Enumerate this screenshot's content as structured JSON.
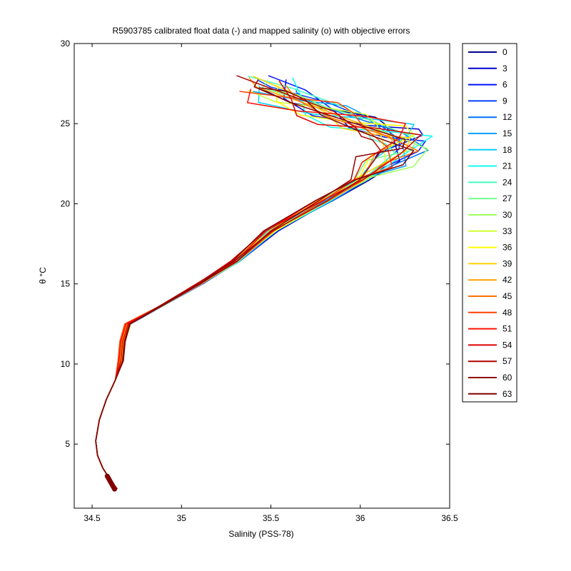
{
  "chart_data": {
    "type": "line",
    "title": "R5903785 calibrated float data (-) and mapped salinity (o) with objective errors",
    "xlabel": "Salinity (PSS-78)",
    "ylabel": "θ °C",
    "xlim": [
      34.4,
      36.5
    ],
    "ylim": [
      1,
      30
    ],
    "xticks": [
      34.5,
      35,
      35.5,
      36,
      36.5
    ],
    "yticks": [
      5,
      10,
      15,
      20,
      25,
      30
    ],
    "grid": false,
    "legend_position": "outside-right",
    "legend": [
      "0",
      "3",
      "6",
      "9",
      "12",
      "15",
      "18",
      "21",
      "24",
      "27",
      "30",
      "33",
      "36",
      "39",
      "42",
      "45",
      "48",
      "51",
      "54",
      "57",
      "60",
      "63"
    ],
    "colors": [
      "#00008f",
      "#0000d0",
      "#0010ff",
      "#0040ff",
      "#0070ff",
      "#00a0ff",
      "#00d0ff",
      "#10ffef",
      "#40ffbf",
      "#70ff8f",
      "#a0ff60",
      "#d0ff30",
      "#ffff00",
      "#ffcf00",
      "#ff9f00",
      "#ff7000",
      "#ff4000",
      "#ff1000",
      "#df0000",
      "#b00000",
      "#900000",
      "#800000"
    ],
    "profile_shape": [
      [
        34.64,
        2.2
      ],
      [
        34.6,
        2.8
      ],
      [
        34.56,
        3.5
      ],
      [
        34.53,
        4.3
      ],
      [
        34.52,
        5.2
      ],
      [
        34.54,
        6.5
      ],
      [
        34.58,
        7.8
      ],
      [
        34.63,
        9.0
      ],
      [
        34.66,
        10.2
      ],
      [
        34.67,
        11.4
      ],
      [
        34.7,
        12.5
      ],
      [
        34.9,
        13.7
      ],
      [
        35.1,
        15.0
      ],
      [
        35.3,
        16.4
      ],
      [
        35.5,
        18.3
      ],
      [
        35.8,
        20.2
      ],
      [
        36.0,
        21.5
      ],
      [
        36.2,
        22.8
      ],
      [
        36.3,
        23.8
      ],
      [
        36.2,
        24.5
      ],
      [
        36.0,
        25.2
      ],
      [
        35.8,
        26.0
      ],
      [
        35.6,
        26.8
      ],
      [
        35.5,
        27.5
      ]
    ]
  }
}
